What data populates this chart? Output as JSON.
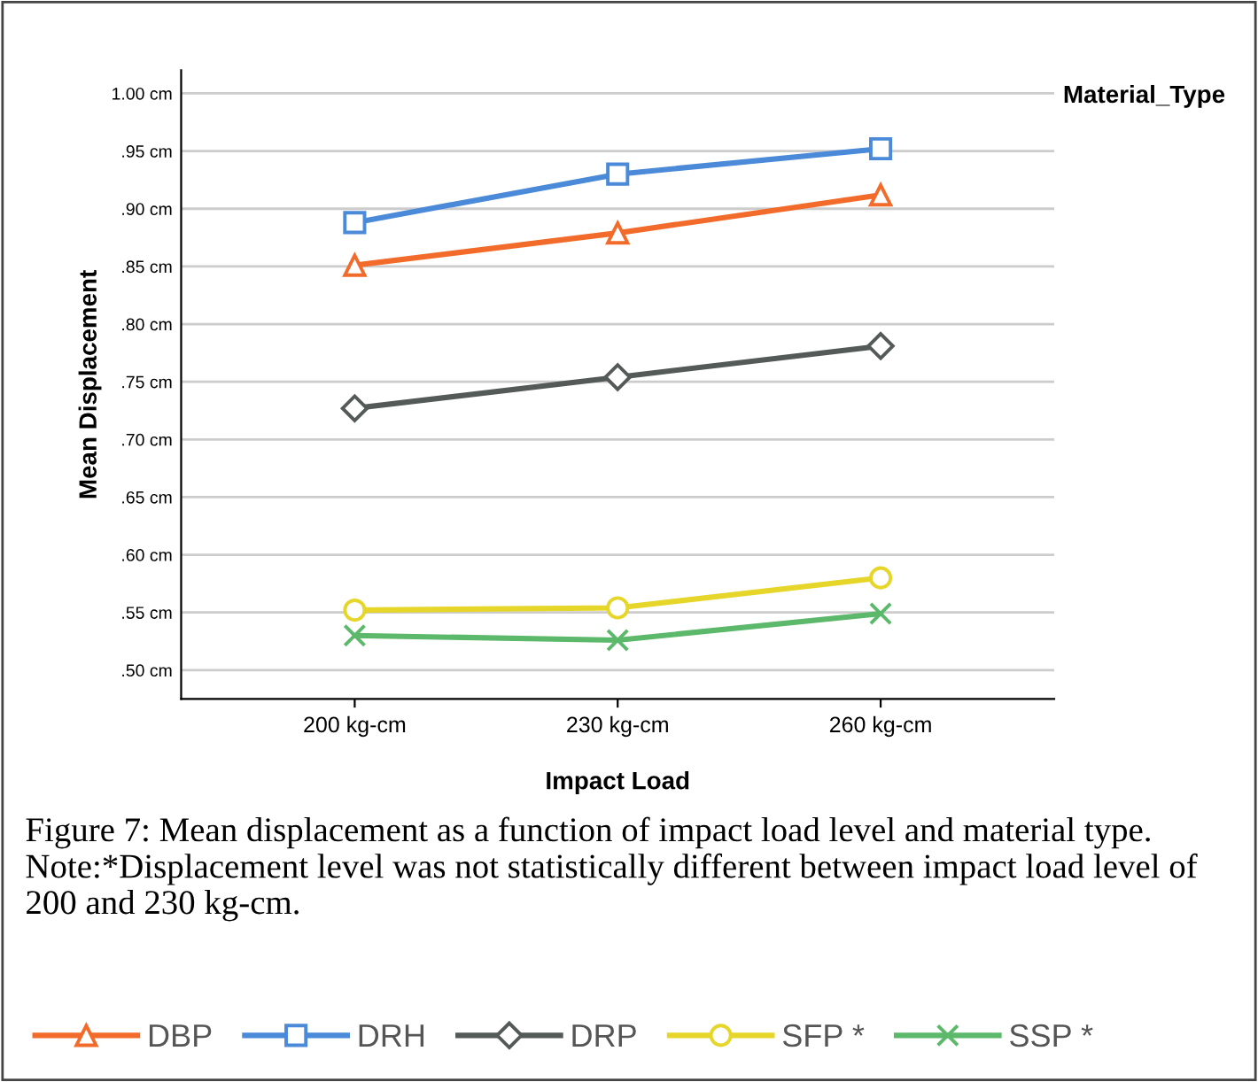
{
  "chart_data": {
    "type": "line",
    "xlabel": "Impact Load",
    "ylabel": "Mean Displacement",
    "legend_title": "Material_Type",
    "categories": [
      "200 kg-cm",
      "230 kg-cm",
      "260 kg-cm"
    ],
    "series": [
      {
        "name": "DBP",
        "color": "#f26b2a",
        "marker": "triangle",
        "values": [
          0.851,
          0.879,
          0.912
        ]
      },
      {
        "name": "DRH",
        "color": "#4a8ad8",
        "marker": "square",
        "values": [
          0.888,
          0.93,
          0.952
        ]
      },
      {
        "name": "DRP",
        "color": "#545a57",
        "marker": "diamond",
        "values": [
          0.727,
          0.754,
          0.781
        ]
      },
      {
        "name": "SFP *",
        "color": "#e6d62a",
        "marker": "circle",
        "values": [
          0.552,
          0.554,
          0.58
        ]
      },
      {
        "name": "SSP *",
        "color": "#5cb86a",
        "marker": "cross",
        "values": [
          0.53,
          0.526,
          0.549
        ]
      }
    ],
    "ylim": [
      0.475,
      1.02
    ],
    "yticks": [
      {
        "value": 0.5,
        "label": ".50 cm"
      },
      {
        "value": 0.55,
        "label": ".55 cm"
      },
      {
        "value": 0.6,
        "label": ".60 cm"
      },
      {
        "value": 0.65,
        "label": ".65 cm"
      },
      {
        "value": 0.7,
        "label": ".70 cm"
      },
      {
        "value": 0.75,
        "label": ".75 cm"
      },
      {
        "value": 0.8,
        "label": ".80 cm"
      },
      {
        "value": 0.85,
        "label": ".85 cm"
      },
      {
        "value": 0.9,
        "label": ".90 cm"
      },
      {
        "value": 0.95,
        "label": ".95 cm"
      },
      {
        "value": 1.0,
        "label": "1.00 cm"
      }
    ],
    "grid": "y",
    "legend": "bottom",
    "line_style": "solid",
    "annotations": [
      "Figure 7: Mean displacement as a function of impact load level and material type. Note:*Displacement level was not statistically different between impact load level of 200 and 230 kg-cm."
    ]
  }
}
